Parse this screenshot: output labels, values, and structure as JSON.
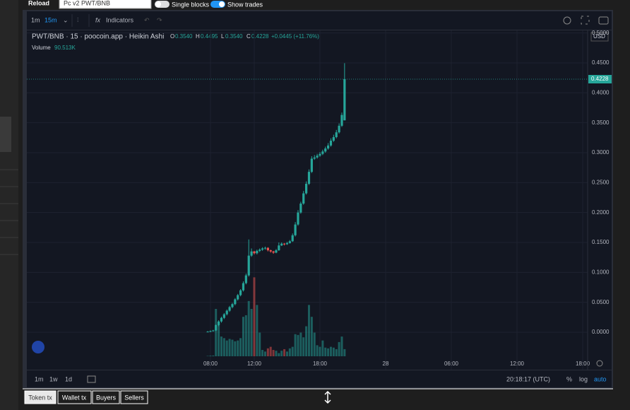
{
  "toolbar": {
    "reload": "Reload",
    "pair_select": "Pc v2 PWT/BNB",
    "single_blocks": "Single blocks",
    "show_trades": "Show trades"
  },
  "chart_toolbar": {
    "intervals": [
      "1m",
      "15m"
    ],
    "indicators": "Indicators"
  },
  "legend": {
    "symbol": "PWT/BNB · 15 · poocoin.app · Heikin Ashi",
    "o_label": "O",
    "o": "0.3540",
    "h_label": "H",
    "h": "0.4495",
    "l_label": "L",
    "l": "0.3540",
    "c_label": "C",
    "c": "0.4228",
    "change": "+0.0445 (+11.76%)",
    "volume_label": "Volume",
    "volume": "90.513K"
  },
  "currency": "USD",
  "chart_data": {
    "type": "candlestick",
    "x": [
      7.75,
      8,
      8.25,
      8.5,
      8.75,
      9,
      9.25,
      9.5,
      9.75,
      10,
      10.25,
      10.5,
      10.75,
      11,
      11.25,
      11.5,
      11.75,
      12,
      12.25,
      12.5,
      12.75,
      13,
      13.25,
      13.5,
      13.75,
      14,
      14.25,
      14.5,
      14.75,
      15,
      15.25,
      15.5,
      15.75,
      16,
      16.25,
      16.5,
      16.75,
      17,
      17.25,
      17.5,
      17.75,
      18,
      18.25,
      18.5,
      18.75,
      19,
      19.25,
      19.5,
      19.75,
      20,
      20.25
    ],
    "open": [
      0,
      0.001,
      0.002,
      0.003,
      0.012,
      0.018,
      0.024,
      0.03,
      0.036,
      0.042,
      0.047,
      0.055,
      0.062,
      0.07,
      0.082,
      0.095,
      0.128,
      0.135,
      0.132,
      0.136,
      0.138,
      0.14,
      0.141,
      0.137,
      0.135,
      0.133,
      0.137,
      0.145,
      0.148,
      0.147,
      0.149,
      0.152,
      0.162,
      0.18,
      0.2,
      0.215,
      0.232,
      0.248,
      0.268,
      0.29,
      0.292,
      0.295,
      0.298,
      0.302,
      0.307,
      0.312,
      0.32,
      0.326,
      0.334,
      0.345,
      0.354
    ],
    "high": [
      0.002,
      0.003,
      0.004,
      0.013,
      0.02,
      0.026,
      0.032,
      0.038,
      0.044,
      0.049,
      0.057,
      0.064,
      0.072,
      0.085,
      0.098,
      0.155,
      0.14,
      0.136,
      0.138,
      0.14,
      0.142,
      0.143,
      0.142,
      0.138,
      0.136,
      0.139,
      0.15,
      0.15,
      0.149,
      0.151,
      0.154,
      0.165,
      0.184,
      0.204,
      0.218,
      0.236,
      0.252,
      0.272,
      0.294,
      0.296,
      0.298,
      0.301,
      0.305,
      0.31,
      0.316,
      0.324,
      0.33,
      0.338,
      0.349,
      0.367,
      0.4495
    ],
    "low": [
      0,
      0,
      0.001,
      0.002,
      0.01,
      0.016,
      0.022,
      0.028,
      0.034,
      0.04,
      0.045,
      0.053,
      0.06,
      0.068,
      0.08,
      0.093,
      0.126,
      0.13,
      0.13,
      0.134,
      0.136,
      0.138,
      0.135,
      0.133,
      0.131,
      0.132,
      0.136,
      0.144,
      0.145,
      0.146,
      0.148,
      0.151,
      0.16,
      0.178,
      0.198,
      0.213,
      0.23,
      0.246,
      0.266,
      0.288,
      0.29,
      0.293,
      0.296,
      0.3,
      0.305,
      0.31,
      0.318,
      0.324,
      0.332,
      0.343,
      0.354
    ],
    "close": [
      0.001,
      0.002,
      0.003,
      0.012,
      0.018,
      0.024,
      0.03,
      0.036,
      0.042,
      0.047,
      0.055,
      0.062,
      0.07,
      0.082,
      0.095,
      0.128,
      0.135,
      0.132,
      0.136,
      0.138,
      0.14,
      0.141,
      0.137,
      0.135,
      0.133,
      0.137,
      0.145,
      0.148,
      0.147,
      0.149,
      0.152,
      0.162,
      0.18,
      0.2,
      0.215,
      0.232,
      0.248,
      0.268,
      0.29,
      0.292,
      0.295,
      0.298,
      0.302,
      0.307,
      0.312,
      0.32,
      0.326,
      0.334,
      0.345,
      0.363,
      0.4228
    ],
    "volume": [
      5000,
      8000,
      10000,
      600000,
      420000,
      250000,
      230000,
      200000,
      220000,
      210000,
      190000,
      200000,
      230000,
      500000,
      520000,
      700000,
      600000,
      1000000,
      650000,
      300000,
      80000,
      60000,
      100000,
      120000,
      80000,
      70000,
      40000,
      70000,
      90000,
      60000,
      100000,
      120000,
      280000,
      270000,
      300000,
      240000,
      380000,
      650000,
      500000,
      300000,
      140000,
      120000,
      200000,
      110000,
      100000,
      120000,
      110000,
      90000,
      180000,
      250000,
      90513
    ],
    "xlim": [
      -8.77,
      42.45
    ],
    "xticks": [
      {
        "value": 8,
        "label": "08:00"
      },
      {
        "value": 12,
        "label": "12:00"
      },
      {
        "value": 18,
        "label": "18:00"
      },
      {
        "value": 24,
        "label": "28"
      },
      {
        "value": 30,
        "label": "06:00"
      },
      {
        "value": 36,
        "label": "12:00"
      },
      {
        "value": 42,
        "label": "18:00"
      }
    ],
    "ylim": [
      -0.0626,
      0.5043
    ],
    "yticks": [
      {
        "value": 0,
        "label": "0.0000"
      },
      {
        "value": 0.05,
        "label": "0.0500"
      },
      {
        "value": 0.1,
        "label": "0.1000"
      },
      {
        "value": 0.15,
        "label": "0.1500"
      },
      {
        "value": 0.2,
        "label": "0.2000"
      },
      {
        "value": 0.25,
        "label": "0.2500"
      },
      {
        "value": 0.3,
        "label": "0.3000"
      },
      {
        "value": 0.35,
        "label": "0.3500"
      },
      {
        "value": 0.4,
        "label": "0.4000"
      },
      {
        "value": 0.45,
        "label": "0.4500"
      },
      {
        "value": 0.5,
        "label": "0.5000"
      }
    ],
    "volume_ylim": [
      0,
      1200000
    ],
    "up_color": "#26a69a",
    "down_color": "#ef5350",
    "grid": true,
    "last_price": {
      "value": 0.4228,
      "label": "0.4228"
    }
  },
  "bottom_bar": {
    "ranges": [
      "1m",
      "1w",
      "1d"
    ],
    "clock": "20:18:17 (UTC)",
    "percent": "%",
    "log": "log",
    "auto": "auto"
  },
  "tabs": [
    "Token tx",
    "Wallet tx",
    "Buyers",
    "Sellers"
  ]
}
